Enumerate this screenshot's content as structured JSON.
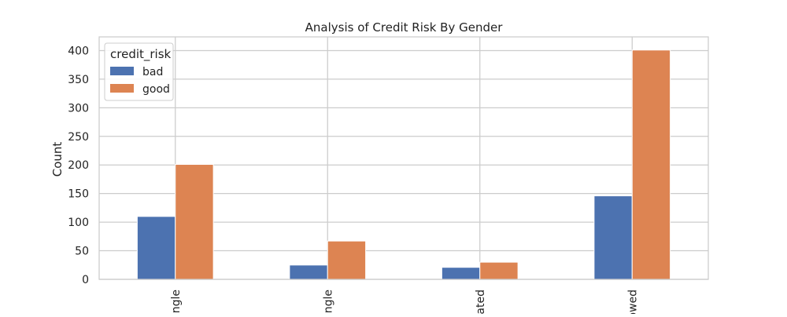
{
  "chart_data": {
    "type": "bar",
    "title": "Analysis of Credit Risk By Gender",
    "xlabel": "",
    "ylabel": "Count",
    "categories": [
      "ngle",
      "ngle",
      "ated",
      "owed"
    ],
    "series": [
      {
        "name": "bad",
        "values": [
          110,
          25,
          21,
          146
        ],
        "color": "#4c72b0"
      },
      {
        "name": "good",
        "values": [
          201,
          67,
          30,
          401
        ],
        "color": "#dd8452"
      }
    ],
    "ylim": [
      0,
      424
    ],
    "yticks": [
      0,
      50,
      100,
      150,
      200,
      250,
      300,
      350,
      400
    ],
    "grid": true,
    "legend": {
      "title": "credit_risk",
      "placement": "top-left"
    }
  }
}
